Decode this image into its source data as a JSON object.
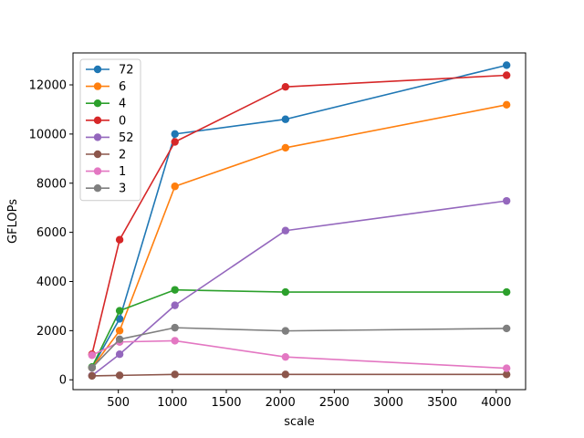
{
  "chart_data": {
    "type": "line",
    "title": "",
    "xlabel": "scale",
    "ylabel": "GFLOPs",
    "x": [
      256,
      512,
      1024,
      2048,
      4096
    ],
    "xlim": [
      80,
      4272
    ],
    "ylim": [
      -400,
      13300
    ],
    "xticks": [
      500,
      1000,
      1500,
      2000,
      2500,
      3000,
      3500,
      4000
    ],
    "yticks": [
      0,
      2000,
      4000,
      6000,
      8000,
      10000,
      12000
    ],
    "grid": false,
    "legend_position": "upper-left",
    "series": [
      {
        "name": "72",
        "color": "#1f77b4",
        "values": [
          500,
          2480,
          10000,
          10600,
          12800
        ]
      },
      {
        "name": "6",
        "color": "#ff7f0e",
        "values": [
          490,
          2000,
          7870,
          9440,
          11190
        ]
      },
      {
        "name": "4",
        "color": "#2ca02c",
        "values": [
          520,
          2810,
          3660,
          3570,
          3570
        ]
      },
      {
        "name": "0",
        "color": "#d62728",
        "values": [
          1040,
          5700,
          9680,
          11920,
          12390
        ]
      },
      {
        "name": "52",
        "color": "#9467bd",
        "values": [
          170,
          1040,
          3030,
          6070,
          7280
        ]
      },
      {
        "name": "2",
        "color": "#8c564b",
        "values": [
          160,
          180,
          220,
          220,
          220
        ]
      },
      {
        "name": "1",
        "color": "#e377c2",
        "values": [
          1000,
          1540,
          1590,
          930,
          470
        ]
      },
      {
        "name": "3",
        "color": "#7f7f7f",
        "values": [
          490,
          1650,
          2120,
          1990,
          2090
        ]
      }
    ]
  }
}
